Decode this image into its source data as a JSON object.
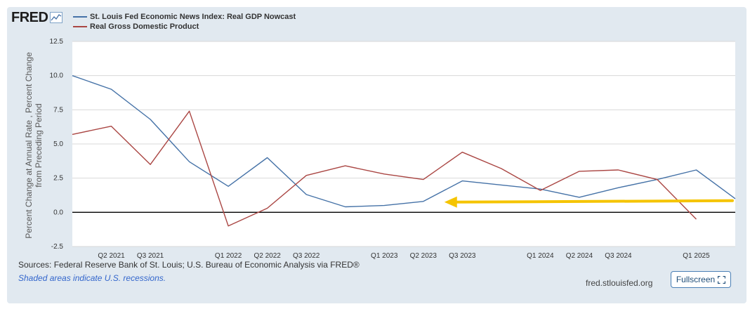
{
  "header": {
    "logo_text": "FRED",
    "logo_icon": "fred-graph-icon"
  },
  "legend": [
    {
      "label": "St. Louis Fed Economic News Index: Real GDP Nowcast",
      "color": "#4572a7"
    },
    {
      "label": "Real Gross Domestic Product",
      "color": "#aa4643"
    }
  ],
  "chart_data": {
    "type": "line",
    "ylabel_lines": [
      "Percent Change at Annual Rate , Percent Change",
      "from Preceding Period"
    ],
    "ylim": [
      -2.5,
      12.5
    ],
    "yticks": [
      12.5,
      10.0,
      7.5,
      5.0,
      2.5,
      0.0,
      -2.5
    ],
    "ytick_labels": [
      "12.5",
      "10.0",
      "7.5",
      "5.0",
      "2.5",
      "0.0",
      "-2.5"
    ],
    "x": [
      "Q1 2021",
      "Q2 2021",
      "Q3 2021",
      "Q4 2021",
      "Q1 2022",
      "Q2 2022",
      "Q3 2022",
      "Q4 2022",
      "Q1 2023",
      "Q2 2023",
      "Q3 2023",
      "Q4 2023",
      "Q1 2024",
      "Q2 2024",
      "Q3 2024",
      "Q4 2024",
      "Q1 2025",
      "Q2 2025"
    ],
    "xtick_labels": [
      "Q2 2021",
      "Q3 2021",
      "Q1 2022",
      "Q2 2022",
      "Q3 2022",
      "Q1 2023",
      "Q2 2023",
      "Q3 2023",
      "Q1 2024",
      "Q2 2024",
      "Q3 2024",
      "Q1 2025"
    ],
    "grid": true,
    "series": [
      {
        "name": "St. Louis Fed Economic News Index: Real GDP Nowcast",
        "color": "#4572a7",
        "values": [
          10.0,
          9.0,
          6.8,
          3.7,
          1.9,
          4.0,
          1.3,
          0.4,
          0.5,
          0.8,
          2.3,
          2.0,
          1.7,
          1.1,
          1.8,
          2.4,
          3.1,
          1.0
        ]
      },
      {
        "name": "Real Gross Domestic Product",
        "color": "#aa4643",
        "values": [
          5.7,
          6.3,
          3.5,
          7.4,
          -1.0,
          0.3,
          2.7,
          3.4,
          2.8,
          2.4,
          4.4,
          3.2,
          1.6,
          3.0,
          3.1,
          2.4,
          -0.5,
          null
        ]
      }
    ],
    "annotation": {
      "type": "arrow",
      "color": "#f5c400",
      "from": [
        "Q2 2025",
        0.85
      ],
      "to": [
        "Q2 2023",
        0.85
      ]
    }
  },
  "footer": {
    "sources": "Sources: Federal Reserve Bank of St. Louis; U.S. Bureau of Economic Analysis via FRED®",
    "note": "Shaded areas indicate U.S. recessions.",
    "site": "fred.stlouisfed.org",
    "fullscreen_label": "Fullscreen"
  }
}
